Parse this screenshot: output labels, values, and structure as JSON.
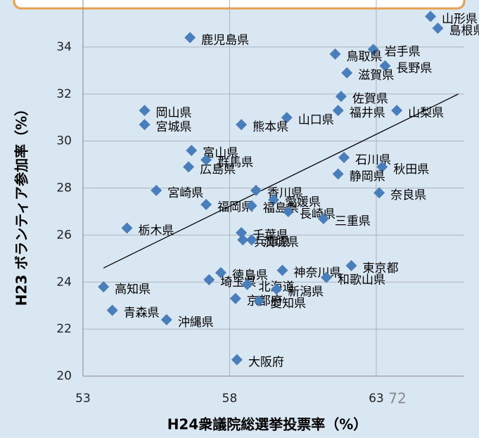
{
  "chart_data": {
    "type": "scatter",
    "x_label": "H24衆議院総選挙投票率（%）",
    "y_label": "H23 ボランティア参加率（%）",
    "page_number": "72",
    "color": "#4a7ebb",
    "grid": true,
    "xlim": [
      53,
      66
    ],
    "xticks": [
      53,
      58,
      63
    ],
    "ylim": [
      20,
      36
    ],
    "yticks": [
      20,
      22,
      24,
      26,
      28,
      30,
      32,
      34
    ],
    "labels": [
      "山形県",
      "島根県",
      "鹿児島県",
      "岩手県",
      "鳥取県",
      "長野県",
      "滋賀県",
      "佐賀県",
      "福井県",
      "山梨県",
      "山口県",
      "岡山県",
      "宮城県",
      "熊本県",
      "富山県",
      "広島県",
      "群馬県",
      "石川県",
      "秋田県",
      "静岡県",
      "宮崎県",
      "香川県",
      "奈良県",
      "福岡県",
      "愛媛県",
      "福島県",
      "長崎県",
      "三重県",
      "栃木県",
      "千葉県",
      "茨城県",
      "兵庫県",
      "東京都",
      "神奈川県",
      "和歌山県",
      "徳島県",
      "埼玉県",
      "北海道",
      "新潟県",
      "京都府",
      "愛知県",
      "高知県",
      "青森県",
      "沖縄県",
      "大阪府"
    ],
    "x": [
      64.85,
      65.1,
      56.65,
      62.9,
      61.6,
      63.3,
      62.0,
      61.8,
      61.7,
      63.7,
      59.95,
      55.1,
      55.1,
      58.4,
      56.7,
      56.6,
      57.2,
      61.9,
      63.2,
      61.7,
      55.5,
      58.9,
      63.1,
      57.2,
      59.5,
      58.75,
      60.0,
      61.2,
      54.5,
      58.4,
      58.75,
      58.45,
      62.15,
      59.8,
      61.3,
      57.7,
      57.3,
      58.6,
      59.6,
      58.2,
      59.0,
      53.7,
      54.0,
      55.85,
      58.25
    ],
    "y": [
      35.3,
      34.8,
      34.4,
      33.9,
      33.7,
      33.2,
      32.9,
      31.9,
      31.3,
      31.3,
      31.0,
      31.3,
      30.7,
      30.7,
      29.6,
      28.9,
      29.2,
      29.3,
      28.9,
      28.6,
      27.9,
      27.9,
      27.8,
      27.3,
      27.5,
      27.25,
      27.0,
      26.7,
      26.3,
      26.1,
      25.8,
      25.8,
      24.7,
      24.5,
      24.2,
      24.4,
      24.1,
      23.9,
      23.7,
      23.3,
      23.2,
      23.8,
      22.8,
      22.4,
      20.7
    ],
    "trendline": {
      "x": [
        53.7,
        65.8
      ],
      "y": [
        24.6,
        32.0
      ]
    }
  }
}
